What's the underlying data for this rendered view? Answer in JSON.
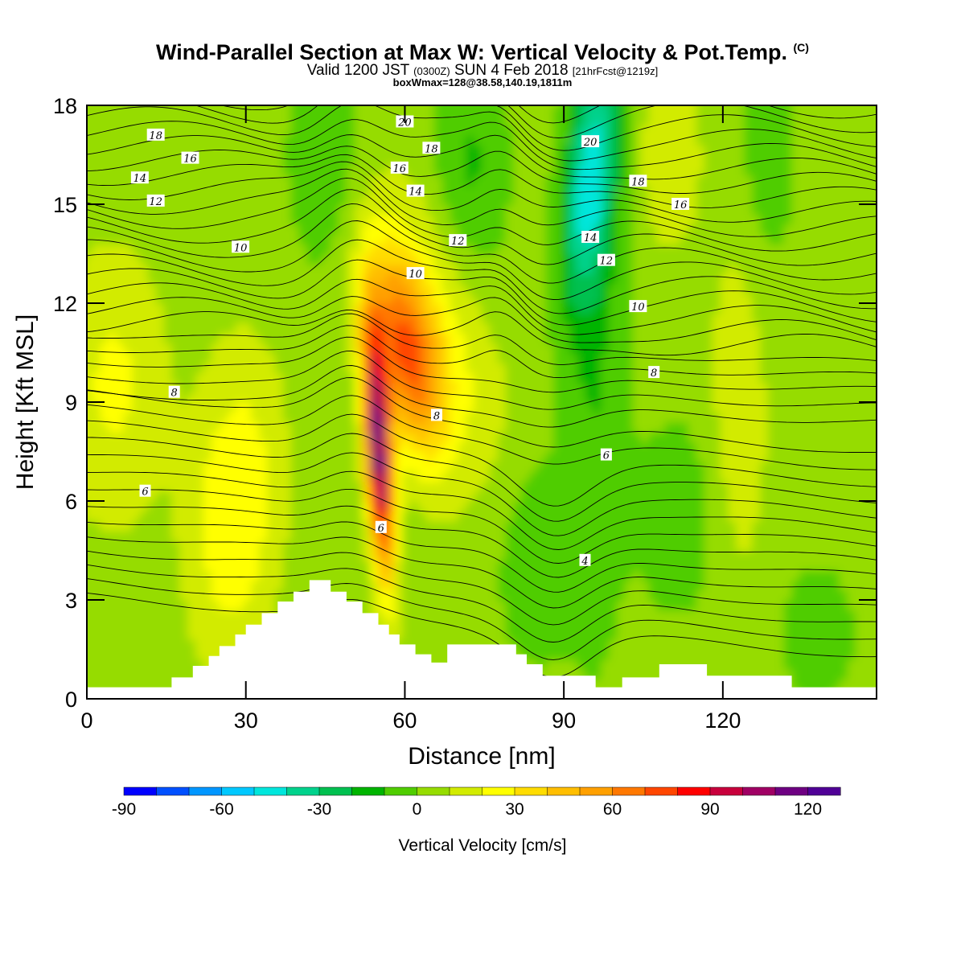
{
  "header": {
    "title_main": "Wind-Parallel Section at Max W: Vertical Velocity & Pot.Temp.",
    "title_mark": "(C)",
    "valid_prefix": "Valid 1200 JST",
    "valid_utc": "(0300Z)",
    "valid_date": "SUN 4 Feb 2018",
    "valid_forecast": "[21hrFcst@1219z]",
    "box_info": "boxWmax=128@38.58,140.19,1811m"
  },
  "chart_data": {
    "type": "heatmap",
    "xlabel": "Distance [nm]",
    "ylabel": "Height [Kft MSL]",
    "xlim": [
      0,
      149
    ],
    "ylim": [
      0,
      18
    ],
    "x_ticks": [
      0,
      30,
      60,
      90,
      120
    ],
    "y_ticks": [
      0,
      3,
      6,
      9,
      12,
      15,
      18
    ],
    "colorbar": {
      "title": "Vertical Velocity [cm/s]",
      "tick_values": [
        -90,
        -60,
        -30,
        0,
        30,
        60,
        90,
        120
      ],
      "range": [
        -90,
        130
      ],
      "colors": [
        "#0000ff",
        "#0050ff",
        "#0096ff",
        "#00c8ff",
        "#00e6dc",
        "#00d28c",
        "#00c050",
        "#00b400",
        "#50cd00",
        "#96dc00",
        "#d2eb00",
        "#ffff00",
        "#ffdc00",
        "#ffbe00",
        "#ffa000",
        "#ff7800",
        "#ff4600",
        "#ff0000",
        "#c8003c",
        "#a00064",
        "#6e0082",
        "#500096"
      ]
    },
    "theta_labels": [
      {
        "text": "18",
        "x": 13,
        "y": 17.1
      },
      {
        "text": "16",
        "x": 19.5,
        "y": 16.4
      },
      {
        "text": "14",
        "x": 10,
        "y": 15.8
      },
      {
        "text": "12",
        "x": 13,
        "y": 15.1
      },
      {
        "text": "10",
        "x": 29,
        "y": 13.7
      },
      {
        "text": "8",
        "x": 16.5,
        "y": 9.3
      },
      {
        "text": "6",
        "x": 11,
        "y": 6.3
      },
      {
        "text": "20",
        "x": 60,
        "y": 17.5
      },
      {
        "text": "18",
        "x": 65,
        "y": 16.7
      },
      {
        "text": "16",
        "x": 59,
        "y": 16.1
      },
      {
        "text": "14",
        "x": 62,
        "y": 15.4
      },
      {
        "text": "12",
        "x": 70,
        "y": 13.9
      },
      {
        "text": "10",
        "x": 62,
        "y": 12.9
      },
      {
        "text": "8",
        "x": 66,
        "y": 8.6
      },
      {
        "text": "6",
        "x": 55.5,
        "y": 5.2
      },
      {
        "text": "20",
        "x": 95,
        "y": 16.9
      },
      {
        "text": "18",
        "x": 104,
        "y": 15.7
      },
      {
        "text": "16",
        "x": 112,
        "y": 15.0
      },
      {
        "text": "14",
        "x": 95,
        "y": 14.0
      },
      {
        "text": "12",
        "x": 98,
        "y": 13.3
      },
      {
        "text": "10",
        "x": 104,
        "y": 11.9
      },
      {
        "text": "8",
        "x": 107,
        "y": 9.9
      },
      {
        "text": "6",
        "x": 98,
        "y": 7.4
      },
      {
        "text": "4",
        "x": 94,
        "y": 4.2
      }
    ]
  }
}
